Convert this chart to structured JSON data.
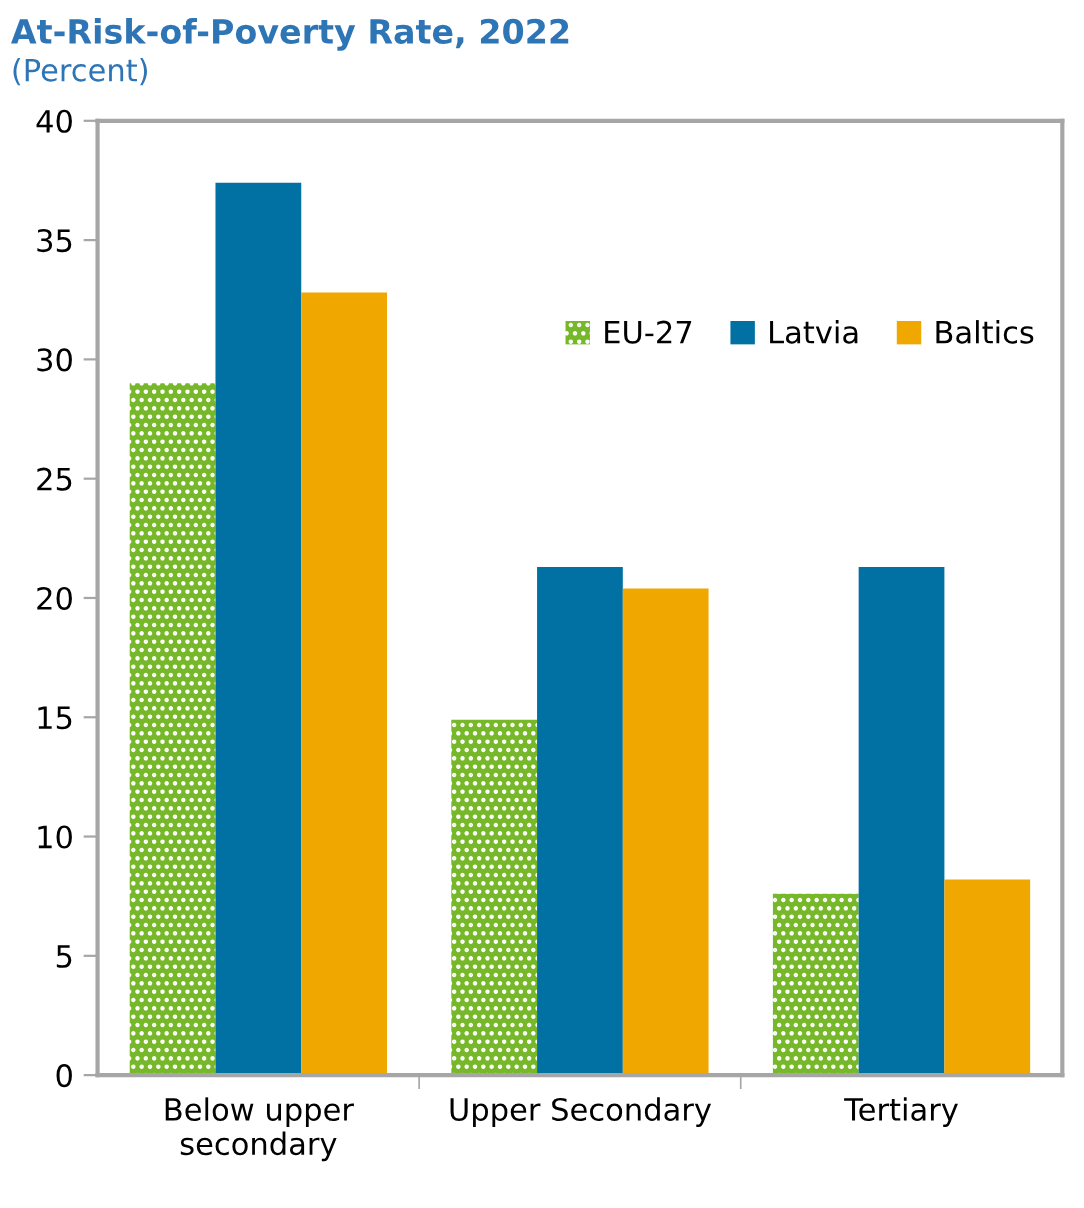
{
  "chart_data": {
    "type": "bar",
    "title": "At-Risk-of-Poverty Rate, 2022",
    "subtitle": "(Percent)",
    "categories": [
      "Below upper\nsecondary",
      "Upper Secondary",
      "Tertiary"
    ],
    "series": [
      {
        "name": "EU-27",
        "color": "#77b82a",
        "values": [
          29.0,
          14.9,
          7.6
        ]
      },
      {
        "name": "Latvia",
        "color": "#0071a2",
        "values": [
          37.4,
          21.3,
          21.3
        ]
      },
      {
        "name": "Baltics",
        "color": "#f0a800",
        "values": [
          32.8,
          20.4,
          8.2
        ]
      }
    ],
    "ylim": [
      0,
      40
    ],
    "yticks": [
      0,
      5,
      10,
      15,
      20,
      25,
      30,
      35,
      40
    ],
    "grid": false,
    "legend": "top right"
  }
}
